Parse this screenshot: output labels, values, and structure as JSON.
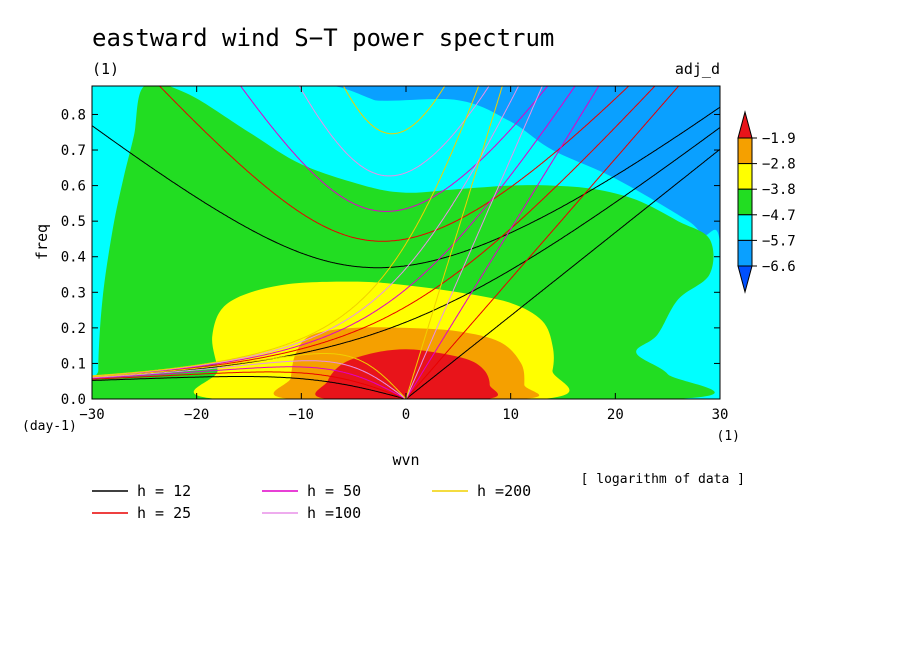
{
  "chart_data": {
    "type": "heatmap",
    "title": "eastward wind S−T power spectrum",
    "subtitle_left": "(1)",
    "subtitle_right": "adj_d",
    "xlabel": "wvn",
    "ylabel": "freq",
    "x_unit": "(1)",
    "y_unit": "(day-1)",
    "xlim": [
      -30,
      30
    ],
    "ylim": [
      0,
      0.88
    ],
    "xticks": [
      -30,
      -20,
      -10,
      0,
      10,
      20,
      30
    ],
    "yticks": [
      0.0,
      0.1,
      0.2,
      0.3,
      0.4,
      0.5,
      0.6,
      0.7,
      0.8
    ],
    "note": "[ logarithm of data ]",
    "colorbar": {
      "levels": [
        "-1.9",
        "-2.8",
        "-3.8",
        "-4.7",
        "-5.7",
        "-6.6"
      ],
      "colors": [
        "#e8141a",
        "#f5a000",
        "#ffff00",
        "#22dd22",
        "#00ffff",
        "#0aa0ff",
        "#0050ff"
      ]
    },
    "regions": [
      {
        "level": "le -6.6",
        "color": "#0050ff",
        "points": [
          [
            18,
            0.88
          ],
          [
            30,
            0.88
          ],
          [
            30,
            0.78
          ],
          [
            25,
            0.75
          ],
          [
            20,
            0.8
          ]
        ]
      },
      {
        "level": "-6.6 to -5.7",
        "color": "#0aa0ff",
        "points": [
          [
            -7,
            0.88
          ],
          [
            30,
            0.88
          ],
          [
            30,
            0.44
          ],
          [
            27,
            0.5
          ],
          [
            20,
            0.62
          ],
          [
            14,
            0.7
          ],
          [
            10,
            0.78
          ],
          [
            5,
            0.84
          ],
          [
            -3,
            0.84
          ],
          [
            -7,
            0.88
          ]
        ]
      },
      {
        "level": "-5.7 to -4.7",
        "color": "#00ffff",
        "points": [
          [
            -30,
            0
          ],
          [
            -30,
            0.88
          ],
          [
            -24,
            0.88
          ],
          [
            -20,
            0.83
          ],
          [
            -14,
            0.82
          ],
          [
            -9,
            0.85
          ],
          [
            -7,
            0.88
          ],
          [
            -3,
            0.84
          ],
          [
            0,
            0.8
          ],
          [
            5,
            0.78
          ],
          [
            10,
            0.74
          ],
          [
            13,
            0.69
          ],
          [
            18,
            0.63
          ],
          [
            24,
            0.54
          ],
          [
            28,
            0.46
          ],
          [
            30,
            0.44
          ],
          [
            30,
            0
          ]
        ]
      },
      {
        "level": "-4.7 to -3.8",
        "color": "#22dd22",
        "points": [
          [
            -29,
            0
          ],
          [
            -29.4,
            0.08
          ],
          [
            -29,
            0.28
          ],
          [
            -28,
            0.48
          ],
          [
            -27,
            0.62
          ],
          [
            -26,
            0.74
          ],
          [
            -25,
            0.88
          ],
          [
            -21,
            0.86
          ],
          [
            -15,
            0.75
          ],
          [
            -10,
            0.66
          ],
          [
            -4,
            0.6
          ],
          [
            0,
            0.58
          ],
          [
            5,
            0.59
          ],
          [
            10,
            0.6
          ],
          [
            14,
            0.6
          ],
          [
            18,
            0.59
          ],
          [
            22,
            0.56
          ],
          [
            26,
            0.5
          ],
          [
            29,
            0.45
          ],
          [
            29,
            0.35
          ],
          [
            26,
            0.28
          ],
          [
            24,
            0.18
          ],
          [
            22,
            0.13
          ],
          [
            25,
            0.07
          ],
          [
            25.5,
            0
          ]
        ]
      },
      {
        "level": "-3.8 to -2.8",
        "color": "#ffff00",
        "points": [
          [
            -18,
            0
          ],
          [
            -18,
            0.08
          ],
          [
            -18.5,
            0.18
          ],
          [
            -17,
            0.27
          ],
          [
            -12,
            0.32
          ],
          [
            -5,
            0.33
          ],
          [
            0,
            0.32
          ],
          [
            5,
            0.3
          ],
          [
            10,
            0.27
          ],
          [
            13,
            0.22
          ],
          [
            14,
            0.15
          ],
          [
            14,
            0.08
          ],
          [
            13,
            0
          ]
        ]
      },
      {
        "level": "-2.8 to -1.9",
        "color": "#f5a000",
        "points": [
          [
            -11,
            0
          ],
          [
            -11,
            0.06
          ],
          [
            -10.5,
            0.13
          ],
          [
            -9,
            0.18
          ],
          [
            -5,
            0.2
          ],
          [
            0,
            0.2
          ],
          [
            5,
            0.19
          ],
          [
            9,
            0.16
          ],
          [
            11,
            0.1
          ],
          [
            11.3,
            0.04
          ],
          [
            11,
            0
          ]
        ]
      },
      {
        "level": "ge -1.9",
        "color": "#e8141a",
        "points": [
          [
            -7.5,
            0
          ],
          [
            -7.5,
            0.05
          ],
          [
            -6,
            0.1
          ],
          [
            -3,
            0.13
          ],
          [
            0,
            0.14
          ],
          [
            3,
            0.13
          ],
          [
            6,
            0.11
          ],
          [
            7.5,
            0.08
          ],
          [
            8,
            0.04
          ],
          [
            7.5,
            0
          ]
        ]
      }
    ],
    "series": [
      {
        "name": "h = 12",
        "h": 12,
        "color": "#000000"
      },
      {
        "name": "h = 25",
        "h": 25,
        "color": "#e80000"
      },
      {
        "name": "h = 50",
        "h": 50,
        "color": "#e000c8"
      },
      {
        "name": "h =100",
        "h": 100,
        "color": "#e890e8"
      },
      {
        "name": "h =200",
        "h": 200,
        "color": "#f0d000"
      }
    ]
  }
}
